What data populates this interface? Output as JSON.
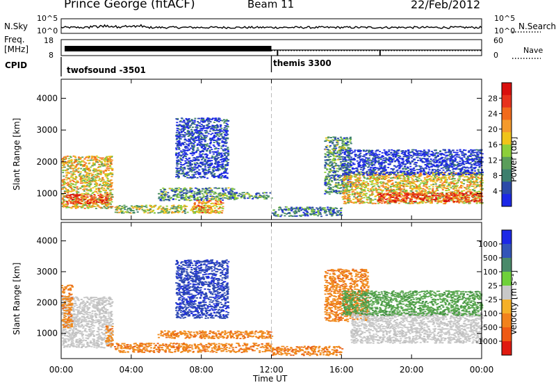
{
  "header": {
    "station": "Prince George (fitACF)",
    "beam": "Beam 11",
    "date": "22/Feb/2012"
  },
  "top_panels": {
    "nsky_label": "N.Sky",
    "nsky_ticks": [
      "10^5",
      "10^0"
    ],
    "nsky_ticks_right": [
      "10^5",
      "10^0"
    ],
    "nsearch_label": "N.Search",
    "freq_label_1": "Freq.",
    "freq_label_2": "[MHz]",
    "freq_ticks": [
      "18",
      "8"
    ],
    "nave_ticks": [
      "60",
      "0"
    ],
    "nave_label": "Nave",
    "cpid_label": "CPID",
    "cpid_segments": [
      {
        "name": "twofsound -3501",
        "start_hour": 0,
        "end_hour": 12
      },
      {
        "name": "themis 3300",
        "start_hour": 12,
        "end_hour": 24
      }
    ]
  },
  "chart_data": [
    {
      "type": "heatmap",
      "panel": "power",
      "ylabel": "Slant Range [km]",
      "ylim": [
        180,
        4600
      ],
      "yticks": [
        1000,
        2000,
        3000,
        4000
      ],
      "xlim_hours": [
        0,
        24
      ],
      "xticks": [
        "00:00",
        "04:00",
        "08:00",
        "12:00",
        "16:00",
        "20:00",
        "00:00"
      ],
      "colorbar": {
        "label": "Power [dB]",
        "ticks": [
          "4",
          "8",
          "12",
          "16",
          "20",
          "24",
          "28"
        ],
        "colors": [
          "#1c28e6",
          "#2b4aa8",
          "#3d7f6e",
          "#5a9e5a",
          "#8ccf3a",
          "#f0c419",
          "#f59a2b",
          "#f26a1b",
          "#e8321c",
          "#d9100e"
        ]
      },
      "regions": [
        {
          "t": [
            0.0,
            2.9
          ],
          "r": [
            550,
            2200
          ],
          "level": 0.55
        },
        {
          "t": [
            0.2,
            2.6
          ],
          "r": [
            700,
            1000
          ],
          "level": 0.85
        },
        {
          "t": [
            3.0,
            8.5
          ],
          "r": [
            400,
            650
          ],
          "level": 0.45
        },
        {
          "t": [
            5.5,
            10.0
          ],
          "r": [
            800,
            1200
          ],
          "level": 0.3
        },
        {
          "t": [
            6.5,
            9.5
          ],
          "r": [
            1500,
            3400
          ],
          "level": 0.1
        },
        {
          "t": [
            7.5,
            9.2
          ],
          "r": [
            400,
            800
          ],
          "level": 0.65
        },
        {
          "t": [
            9.5,
            12.0
          ],
          "r": [
            850,
            1050
          ],
          "level": 0.3
        },
        {
          "t": [
            12.0,
            16.0
          ],
          "r": [
            300,
            600
          ],
          "level": 0.25
        },
        {
          "t": [
            15.0,
            16.5
          ],
          "r": [
            1000,
            2800
          ],
          "level": 0.3
        },
        {
          "t": [
            16.0,
            24.0
          ],
          "r": [
            700,
            1700
          ],
          "level": 0.55
        },
        {
          "t": [
            18.0,
            24.0
          ],
          "r": [
            750,
            1050
          ],
          "level": 0.85
        },
        {
          "t": [
            16.0,
            24.0
          ],
          "r": [
            1600,
            2400
          ],
          "level": 0.05
        }
      ]
    },
    {
      "type": "heatmap",
      "panel": "velocity",
      "ylabel": "Slant Range [km]",
      "ylim": [
        180,
        4600
      ],
      "yticks": [
        1000,
        2000,
        3000,
        4000
      ],
      "xlim_hours": [
        0,
        24
      ],
      "xticks": [
        "00:00",
        "04:00",
        "08:00",
        "12:00",
        "16:00",
        "20:00",
        "00:00"
      ],
      "xlabel": "Time UT",
      "colorbar": {
        "label": "Velocity [m s⁻¹]",
        "ticks": [
          "1000",
          "500",
          "100",
          "25",
          "-25",
          "-100",
          "-500",
          "-1000"
        ],
        "colors": [
          "#1c28e6",
          "#3355b8",
          "#4a8a6a",
          "#6fd13a",
          "#c8c8c8",
          "#f5b028",
          "#f2821c",
          "#ef5a14",
          "#e01a10"
        ]
      },
      "regions": [
        {
          "t": [
            0.0,
            2.9
          ],
          "r": [
            550,
            2200
          ],
          "level": "gray"
        },
        {
          "t": [
            0.0,
            0.6
          ],
          "r": [
            1200,
            2600
          ],
          "level": "orange"
        },
        {
          "t": [
            2.5,
            2.9
          ],
          "r": [
            600,
            1300
          ],
          "level": "orange"
        },
        {
          "t": [
            3.0,
            12.0
          ],
          "r": [
            400,
            700
          ],
          "level": "orange"
        },
        {
          "t": [
            5.5,
            12.0
          ],
          "r": [
            850,
            1100
          ],
          "level": "orange"
        },
        {
          "t": [
            6.5,
            9.5
          ],
          "r": [
            1500,
            3400
          ],
          "level": "blue"
        },
        {
          "t": [
            12.0,
            16.0
          ],
          "r": [
            300,
            600
          ],
          "level": "orange"
        },
        {
          "t": [
            15.0,
            17.5
          ],
          "r": [
            1400,
            3100
          ],
          "level": "orange"
        },
        {
          "t": [
            16.5,
            24.0
          ],
          "r": [
            700,
            1700
          ],
          "level": "gray"
        },
        {
          "t": [
            16.0,
            24.0
          ],
          "r": [
            1600,
            2400
          ],
          "level": "green"
        }
      ]
    }
  ]
}
